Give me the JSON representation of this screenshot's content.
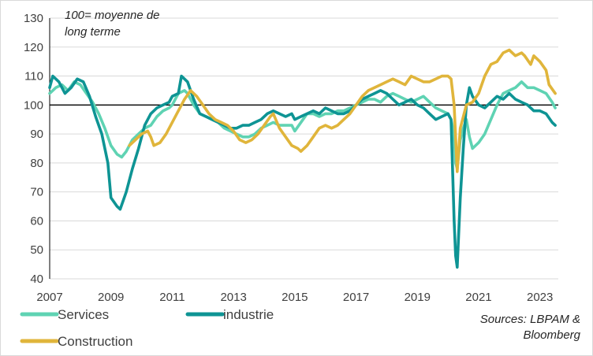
{
  "chart_data": {
    "type": "line",
    "title": "",
    "annotation_lines": [
      "100= moyenne de",
      "long terme"
    ],
    "source_lines": [
      "Sources: LBPAM &",
      "Bloomberg"
    ],
    "xlabel": "",
    "ylabel": "",
    "xlim": [
      2007,
      2023.6
    ],
    "ylim": [
      40,
      130
    ],
    "x_ticks": [
      2007,
      2009,
      2011,
      2013,
      2015,
      2017,
      2019,
      2021,
      2023
    ],
    "x_tick_labels": [
      "2007",
      "2009",
      "2011",
      "2013",
      "2015",
      "2017",
      "2019",
      "2021",
      "2023"
    ],
    "y_ticks": [
      40,
      50,
      60,
      70,
      80,
      90,
      100,
      110,
      120,
      130
    ],
    "y_tick_labels": [
      "40",
      "50",
      "60",
      "70",
      "80",
      "90",
      "100",
      "110",
      "120",
      "130"
    ],
    "reference_line": 100,
    "grid": "horizontal",
    "series": [
      {
        "name": "Services",
        "color": "#5fd3b3",
        "points": [
          [
            2007.0,
            104
          ],
          [
            2007.2,
            106
          ],
          [
            2007.4,
            107
          ],
          [
            2007.6,
            105
          ],
          [
            2007.8,
            108
          ],
          [
            2008.0,
            107
          ],
          [
            2008.2,
            104
          ],
          [
            2008.4,
            101
          ],
          [
            2008.6,
            97
          ],
          [
            2008.8,
            92
          ],
          [
            2009.0,
            86
          ],
          [
            2009.2,
            83
          ],
          [
            2009.35,
            82
          ],
          [
            2009.5,
            84
          ],
          [
            2009.7,
            88
          ],
          [
            2009.9,
            90
          ],
          [
            2010.1,
            92
          ],
          [
            2010.3,
            93
          ],
          [
            2010.5,
            96
          ],
          [
            2010.7,
            98
          ],
          [
            2010.9,
            99
          ],
          [
            2011.0,
            100
          ],
          [
            2011.2,
            104
          ],
          [
            2011.4,
            105
          ],
          [
            2011.5,
            104
          ],
          [
            2011.7,
            100
          ],
          [
            2011.9,
            97
          ],
          [
            2012.1,
            96
          ],
          [
            2012.3,
            95
          ],
          [
            2012.5,
            94
          ],
          [
            2012.7,
            92
          ],
          [
            2012.9,
            91
          ],
          [
            2013.1,
            90
          ],
          [
            2013.3,
            89
          ],
          [
            2013.5,
            89
          ],
          [
            2013.7,
            90
          ],
          [
            2013.9,
            92
          ],
          [
            2014.1,
            93
          ],
          [
            2014.3,
            94
          ],
          [
            2014.5,
            93
          ],
          [
            2014.7,
            93
          ],
          [
            2014.9,
            93
          ],
          [
            2015.0,
            91
          ],
          [
            2015.2,
            94
          ],
          [
            2015.4,
            97
          ],
          [
            2015.6,
            97
          ],
          [
            2015.8,
            96
          ],
          [
            2016.0,
            97
          ],
          [
            2016.2,
            97
          ],
          [
            2016.4,
            98
          ],
          [
            2016.6,
            98
          ],
          [
            2016.8,
            99
          ],
          [
            2017.0,
            100
          ],
          [
            2017.2,
            101
          ],
          [
            2017.4,
            102
          ],
          [
            2017.6,
            102
          ],
          [
            2017.8,
            101
          ],
          [
            2018.0,
            103
          ],
          [
            2018.2,
            104
          ],
          [
            2018.4,
            103
          ],
          [
            2018.6,
            102
          ],
          [
            2018.8,
            101
          ],
          [
            2019.0,
            102
          ],
          [
            2019.2,
            103
          ],
          [
            2019.4,
            101
          ],
          [
            2019.6,
            99
          ],
          [
            2019.8,
            98
          ],
          [
            2020.0,
            97
          ],
          [
            2020.1,
            95
          ],
          [
            2020.2,
            90
          ],
          [
            2020.25,
            80
          ],
          [
            2020.3,
            78
          ],
          [
            2020.4,
            88
          ],
          [
            2020.5,
            92
          ],
          [
            2020.6,
            95
          ],
          [
            2020.7,
            89
          ],
          [
            2020.8,
            85
          ],
          [
            2021.0,
            87
          ],
          [
            2021.2,
            90
          ],
          [
            2021.4,
            95
          ],
          [
            2021.6,
            100
          ],
          [
            2021.8,
            104
          ],
          [
            2022.0,
            105
          ],
          [
            2022.2,
            106
          ],
          [
            2022.4,
            108
          ],
          [
            2022.6,
            106
          ],
          [
            2022.8,
            106
          ],
          [
            2023.0,
            105
          ],
          [
            2023.2,
            104
          ],
          [
            2023.4,
            101
          ],
          [
            2023.5,
            99
          ]
        ]
      },
      {
        "name": "industrie",
        "color": "#0e9494",
        "points": [
          [
            2007.0,
            106
          ],
          [
            2007.1,
            110
          ],
          [
            2007.3,
            108
          ],
          [
            2007.5,
            104
          ],
          [
            2007.7,
            106
          ],
          [
            2007.9,
            109
          ],
          [
            2008.1,
            108
          ],
          [
            2008.3,
            103
          ],
          [
            2008.5,
            96
          ],
          [
            2008.7,
            90
          ],
          [
            2008.9,
            80
          ],
          [
            2009.0,
            68
          ],
          [
            2009.2,
            65
          ],
          [
            2009.3,
            64
          ],
          [
            2009.5,
            70
          ],
          [
            2009.7,
            78
          ],
          [
            2009.9,
            85
          ],
          [
            2010.1,
            93
          ],
          [
            2010.3,
            97
          ],
          [
            2010.5,
            99
          ],
          [
            2010.7,
            100
          ],
          [
            2010.9,
            101
          ],
          [
            2011.0,
            103
          ],
          [
            2011.2,
            104
          ],
          [
            2011.3,
            110
          ],
          [
            2011.5,
            108
          ],
          [
            2011.7,
            102
          ],
          [
            2011.9,
            97
          ],
          [
            2012.1,
            96
          ],
          [
            2012.3,
            95
          ],
          [
            2012.5,
            94
          ],
          [
            2012.7,
            93
          ],
          [
            2012.9,
            92
          ],
          [
            2013.1,
            92
          ],
          [
            2013.3,
            93
          ],
          [
            2013.5,
            93
          ],
          [
            2013.7,
            94
          ],
          [
            2013.9,
            95
          ],
          [
            2014.1,
            97
          ],
          [
            2014.3,
            98
          ],
          [
            2014.5,
            97
          ],
          [
            2014.7,
            96
          ],
          [
            2014.9,
            97
          ],
          [
            2015.0,
            95
          ],
          [
            2015.2,
            96
          ],
          [
            2015.4,
            97
          ],
          [
            2015.6,
            98
          ],
          [
            2015.8,
            97
          ],
          [
            2016.0,
            99
          ],
          [
            2016.2,
            98
          ],
          [
            2016.4,
            97
          ],
          [
            2016.6,
            97
          ],
          [
            2016.8,
            98
          ],
          [
            2017.0,
            100
          ],
          [
            2017.2,
            102
          ],
          [
            2017.4,
            103
          ],
          [
            2017.6,
            104
          ],
          [
            2017.8,
            105
          ],
          [
            2018.0,
            104
          ],
          [
            2018.2,
            102
          ],
          [
            2018.4,
            100
          ],
          [
            2018.6,
            101
          ],
          [
            2018.8,
            102
          ],
          [
            2019.0,
            100
          ],
          [
            2019.2,
            99
          ],
          [
            2019.4,
            97
          ],
          [
            2019.6,
            95
          ],
          [
            2019.8,
            96
          ],
          [
            2020.0,
            97
          ],
          [
            2020.1,
            95
          ],
          [
            2020.2,
            60
          ],
          [
            2020.25,
            48
          ],
          [
            2020.3,
            44
          ],
          [
            2020.4,
            68
          ],
          [
            2020.5,
            85
          ],
          [
            2020.6,
            100
          ],
          [
            2020.7,
            106
          ],
          [
            2020.8,
            103
          ],
          [
            2021.0,
            100
          ],
          [
            2021.2,
            99
          ],
          [
            2021.4,
            101
          ],
          [
            2021.6,
            103
          ],
          [
            2021.8,
            102
          ],
          [
            2022.0,
            104
          ],
          [
            2022.2,
            102
          ],
          [
            2022.4,
            101
          ],
          [
            2022.6,
            100
          ],
          [
            2022.8,
            98
          ],
          [
            2023.0,
            98
          ],
          [
            2023.2,
            97
          ],
          [
            2023.4,
            94
          ],
          [
            2023.5,
            93
          ]
        ]
      },
      {
        "name": "Construction",
        "color": "#e0b53b",
        "points": [
          [
            2009.6,
            86
          ],
          [
            2009.8,
            88
          ],
          [
            2010.0,
            90
          ],
          [
            2010.2,
            91
          ],
          [
            2010.3,
            89
          ],
          [
            2010.4,
            86
          ],
          [
            2010.6,
            87
          ],
          [
            2010.8,
            90
          ],
          [
            2011.0,
            94
          ],
          [
            2011.2,
            98
          ],
          [
            2011.4,
            102
          ],
          [
            2011.6,
            105
          ],
          [
            2011.8,
            103
          ],
          [
            2012.0,
            100
          ],
          [
            2012.2,
            97
          ],
          [
            2012.4,
            95
          ],
          [
            2012.6,
            94
          ],
          [
            2012.8,
            93
          ],
          [
            2013.0,
            91
          ],
          [
            2013.2,
            88
          ],
          [
            2013.4,
            87
          ],
          [
            2013.6,
            88
          ],
          [
            2013.8,
            90
          ],
          [
            2014.0,
            93
          ],
          [
            2014.2,
            96
          ],
          [
            2014.3,
            97
          ],
          [
            2014.5,
            92
          ],
          [
            2014.7,
            89
          ],
          [
            2014.9,
            86
          ],
          [
            2015.1,
            85
          ],
          [
            2015.2,
            84
          ],
          [
            2015.4,
            86
          ],
          [
            2015.6,
            89
          ],
          [
            2015.8,
            92
          ],
          [
            2016.0,
            93
          ],
          [
            2016.2,
            92
          ],
          [
            2016.4,
            93
          ],
          [
            2016.6,
            95
          ],
          [
            2016.8,
            97
          ],
          [
            2017.0,
            100
          ],
          [
            2017.2,
            103
          ],
          [
            2017.4,
            105
          ],
          [
            2017.6,
            106
          ],
          [
            2017.8,
            107
          ],
          [
            2018.0,
            108
          ],
          [
            2018.2,
            109
          ],
          [
            2018.4,
            108
          ],
          [
            2018.6,
            107
          ],
          [
            2018.8,
            110
          ],
          [
            2019.0,
            109
          ],
          [
            2019.2,
            108
          ],
          [
            2019.4,
            108
          ],
          [
            2019.6,
            109
          ],
          [
            2019.8,
            110
          ],
          [
            2020.0,
            110
          ],
          [
            2020.1,
            109
          ],
          [
            2020.2,
            100
          ],
          [
            2020.3,
            77
          ],
          [
            2020.4,
            92
          ],
          [
            2020.6,
            100
          ],
          [
            2020.8,
            101
          ],
          [
            2021.0,
            104
          ],
          [
            2021.2,
            110
          ],
          [
            2021.4,
            114
          ],
          [
            2021.6,
            115
          ],
          [
            2021.8,
            118
          ],
          [
            2022.0,
            119
          ],
          [
            2022.2,
            117
          ],
          [
            2022.4,
            118
          ],
          [
            2022.5,
            117
          ],
          [
            2022.7,
            114
          ],
          [
            2022.8,
            117
          ],
          [
            2023.0,
            115
          ],
          [
            2023.2,
            112
          ],
          [
            2023.3,
            107
          ],
          [
            2023.5,
            104
          ]
        ]
      }
    ]
  }
}
